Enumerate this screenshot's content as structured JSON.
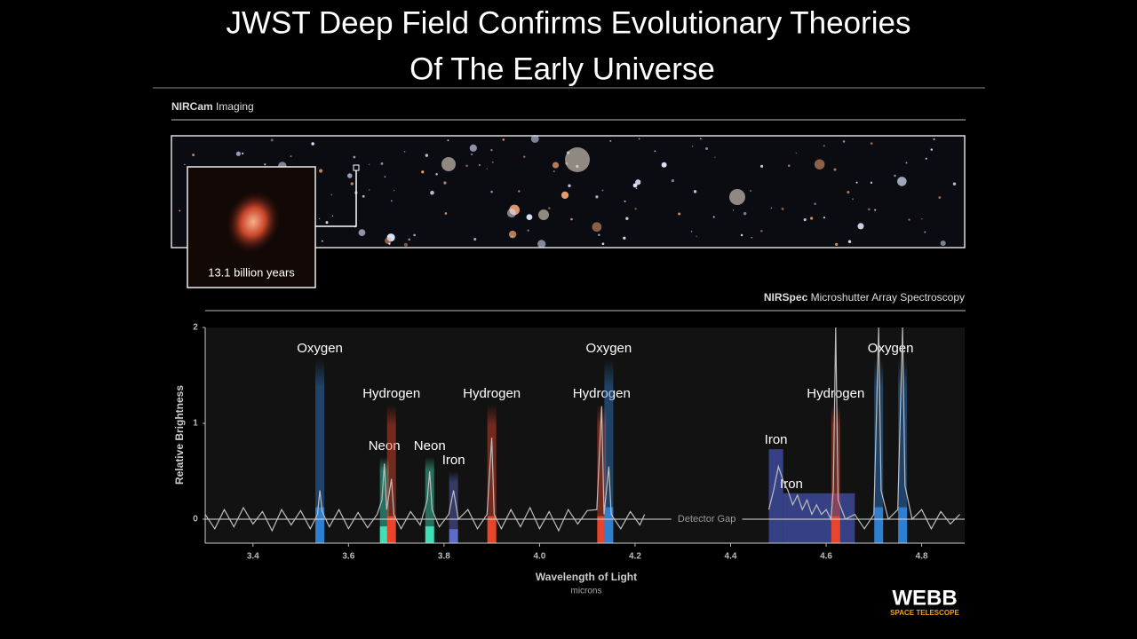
{
  "header": {
    "title_lines": [
      "JWST Deep Field Confirms Evolutionary Theories",
      "Of The Early Universe"
    ]
  },
  "imaging": {
    "heading_bold": "NIRCam",
    "heading": "Imaging",
    "inset_label": "13.1 billion years"
  },
  "spectroscopy": {
    "heading_bold": "NIRSpec",
    "heading": "Microshutter Array Spectroscopy"
  },
  "logo": {
    "name": "WEBB",
    "subtitle": "SPACE TELESCOPE"
  },
  "chart_data": {
    "type": "line",
    "xlabel": "Wavelength of Light",
    "xunit": "microns",
    "ylabel": "Relative Brightness",
    "annotation": "Detector Gap",
    "xlim": [
      3.3,
      4.89
    ],
    "ylim": [
      -0.25,
      2
    ],
    "xticks": [
      3.4,
      3.6,
      {
        "value": 3.8,
        "label": "3.8"
      },
      {
        "value": 4.0,
        "label": "4.0"
      },
      4.2,
      4.4,
      4.6,
      4.8
    ],
    "yticks": [
      0,
      1,
      2
    ],
    "series": [
      {
        "color": "#bdbdbd",
        "x": [
          3.3,
          3.32,
          3.34,
          3.36,
          3.38,
          3.4,
          3.42,
          3.44,
          3.46,
          3.48,
          3.5,
          3.52,
          3.535,
          3.54,
          3.545,
          3.56,
          3.58,
          3.6,
          3.62,
          3.64,
          3.66,
          3.67,
          3.675,
          3.68,
          3.69,
          3.695,
          3.71,
          3.73,
          3.75,
          3.765,
          3.77,
          3.775,
          3.79,
          3.81,
          3.82,
          3.83,
          3.85,
          3.87,
          3.89,
          3.9,
          3.905,
          3.92,
          3.94,
          3.96,
          3.98,
          4.0,
          4.02,
          4.04,
          4.06,
          4.08,
          4.1,
          4.12,
          4.13,
          4.135,
          4.145,
          4.15,
          4.17,
          4.19,
          4.21,
          4.22,
          4.35,
          4.48,
          4.49,
          4.5,
          4.51,
          4.52,
          4.53,
          4.54,
          4.55,
          4.56,
          4.57,
          4.58,
          4.59,
          4.6,
          4.61,
          4.615,
          4.62,
          4.625,
          4.64,
          4.66,
          4.68,
          4.7,
          4.71,
          4.715,
          4.73,
          4.75,
          4.76,
          4.765,
          4.78,
          4.8,
          4.82,
          4.84,
          4.86,
          4.88
        ],
        "values": [
          0.05,
          -0.1,
          0.1,
          -0.08,
          0.12,
          -0.05,
          0.08,
          -0.12,
          0.1,
          -0.06,
          0.09,
          -0.1,
          0.05,
          0.3,
          0.08,
          -0.08,
          0.1,
          -0.1,
          0.07,
          -0.09,
          0.05,
          0.2,
          0.58,
          0.1,
          0.42,
          0.05,
          -0.1,
          0.08,
          -0.06,
          0.2,
          0.5,
          0.1,
          -0.08,
          0.05,
          0.3,
          0.0,
          0.1,
          -0.1,
          0.05,
          0.85,
          0.05,
          -0.1,
          0.1,
          -0.08,
          0.12,
          -0.1,
          0.08,
          -0.12,
          0.1,
          -0.05,
          0.09,
          0.1,
          1.18,
          0.05,
          0.55,
          0.05,
          -0.1,
          0.08,
          -0.06,
          0.05,
          null,
          0.1,
          0.3,
          0.55,
          0.4,
          0.3,
          0.15,
          0.25,
          0.1,
          0.2,
          0.05,
          0.15,
          0.05,
          0.1,
          0.0,
          0.3,
          2,
          0.2,
          0.0,
          0.05,
          -0.1,
          0.05,
          2,
          0.3,
          0.0,
          0.1,
          2,
          0.35,
          0.0,
          0.1,
          -0.1,
          0.08,
          -0.05,
          0.05
        ]
      }
    ],
    "features": [
      {
        "label": "Oxygen",
        "lines": [
          3.54
        ],
        "color": "#2f7fd0"
      },
      {
        "label": "Neon",
        "lines": [
          3.675
        ],
        "color": "#3fe0b8"
      },
      {
        "label": "Hydrogen",
        "lines": [
          3.69
        ],
        "color": "#e8452c"
      },
      {
        "label": "Neon",
        "lines": [
          3.77
        ],
        "color": "#3fe0b8"
      },
      {
        "label": "Iron",
        "lines": [
          3.82
        ],
        "color": "#5d6cc8"
      },
      {
        "label": "Hydrogen",
        "lines": [
          3.9
        ],
        "color": "#e8452c"
      },
      {
        "label": "Hydrogen",
        "lines": [
          4.13
        ],
        "color": "#e8452c"
      },
      {
        "label": "Oxygen",
        "lines": [
          4.145
        ],
        "color": "#2f7fd0"
      },
      {
        "label": "Iron",
        "span": [
          4.48,
          4.51
        ],
        "top": 0.73,
        "color": "#3d4a9a"
      },
      {
        "label": "Iron",
        "span": [
          4.51,
          4.66
        ],
        "top": 0.27,
        "color": "#3d4a9a"
      },
      {
        "label": "Hydrogen",
        "lines": [
          4.62
        ],
        "color": "#e8452c"
      },
      {
        "label": "Oxygen",
        "lines": [
          4.71,
          4.76
        ],
        "color": "#2f7fd0"
      }
    ]
  }
}
